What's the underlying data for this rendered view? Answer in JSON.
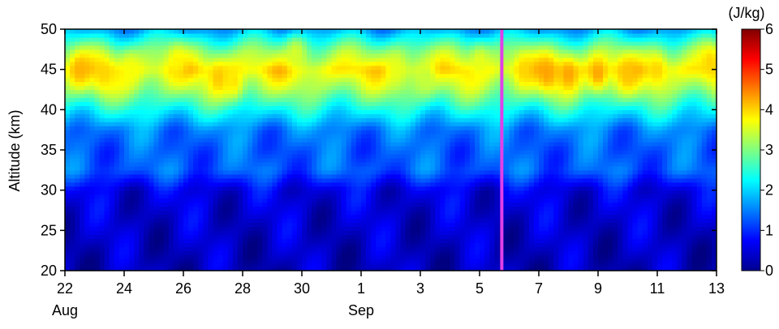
{
  "chart_data": {
    "type": "heatmap",
    "title": "",
    "ylabel": "Altitude (km)",
    "xlabel": "",
    "colorbar": {
      "label": "(J/kg)",
      "range": [
        0,
        6
      ],
      "ticks": [
        "0",
        "1",
        "2",
        "3",
        "4",
        "5",
        "6"
      ],
      "colormap": "jet"
    },
    "y": {
      "range": [
        20,
        50
      ],
      "ticks": [
        "20",
        "25",
        "30",
        "35",
        "40",
        "45",
        "50"
      ]
    },
    "x": {
      "start": "Aug 22",
      "end": "Sep 13",
      "tick_labels": [
        "22",
        "24",
        "26",
        "28",
        "30",
        "1",
        "3",
        "5",
        "7",
        "9",
        "11",
        "13"
      ],
      "tick_days": [
        22,
        24,
        26,
        28,
        30,
        32,
        34,
        36,
        38,
        40,
        42,
        44
      ],
      "month_labels": [
        {
          "text": "Aug",
          "day": 22
        },
        {
          "text": "Sep",
          "day": 32
        }
      ]
    },
    "marker_line": {
      "day": 36.75,
      "color": "#e040e8"
    },
    "profile": {
      "altitudes_km": [
        20,
        22.5,
        25,
        27.5,
        30,
        32.5,
        35,
        37.5,
        40,
        42.5,
        45,
        47.5,
        50
      ],
      "energy_jkg": [
        0.35,
        0.4,
        0.45,
        0.5,
        0.6,
        1.3,
        1.3,
        1.5,
        2.3,
        3.2,
        3.9,
        3.0,
        1.7
      ]
    },
    "features": [
      {
        "day": 22.5,
        "alt": 45,
        "value": 4.2
      },
      {
        "day": 23.3,
        "alt": 44.5,
        "value": 4.0
      },
      {
        "day": 24.2,
        "alt": 45,
        "value": 3.7
      },
      {
        "day": 25.8,
        "alt": 46,
        "value": 3.8
      },
      {
        "day": 27.2,
        "alt": 44,
        "value": 4.1
      },
      {
        "day": 27.7,
        "alt": 43.5,
        "value": 3.9
      },
      {
        "day": 29.8,
        "alt": 47,
        "value": 3.5
      },
      {
        "day": 33.2,
        "alt": 45,
        "value": 3.6
      },
      {
        "day": 34.2,
        "alt": 44,
        "value": 3.4
      },
      {
        "day": 36.0,
        "alt": 46,
        "value": 3.6
      },
      {
        "day": 37.5,
        "alt": 45,
        "value": 4.0
      },
      {
        "day": 38.3,
        "alt": 44.5,
        "value": 4.3
      },
      {
        "day": 39.0,
        "alt": 44.5,
        "value": 4.3
      },
      {
        "day": 40.0,
        "alt": 44.5,
        "value": 4.3
      },
      {
        "day": 41.0,
        "alt": 44.5,
        "value": 4.1
      },
      {
        "day": 42.0,
        "alt": 45,
        "value": 4.0
      },
      {
        "day": 43.8,
        "alt": 46,
        "value": 4.0
      }
    ]
  }
}
